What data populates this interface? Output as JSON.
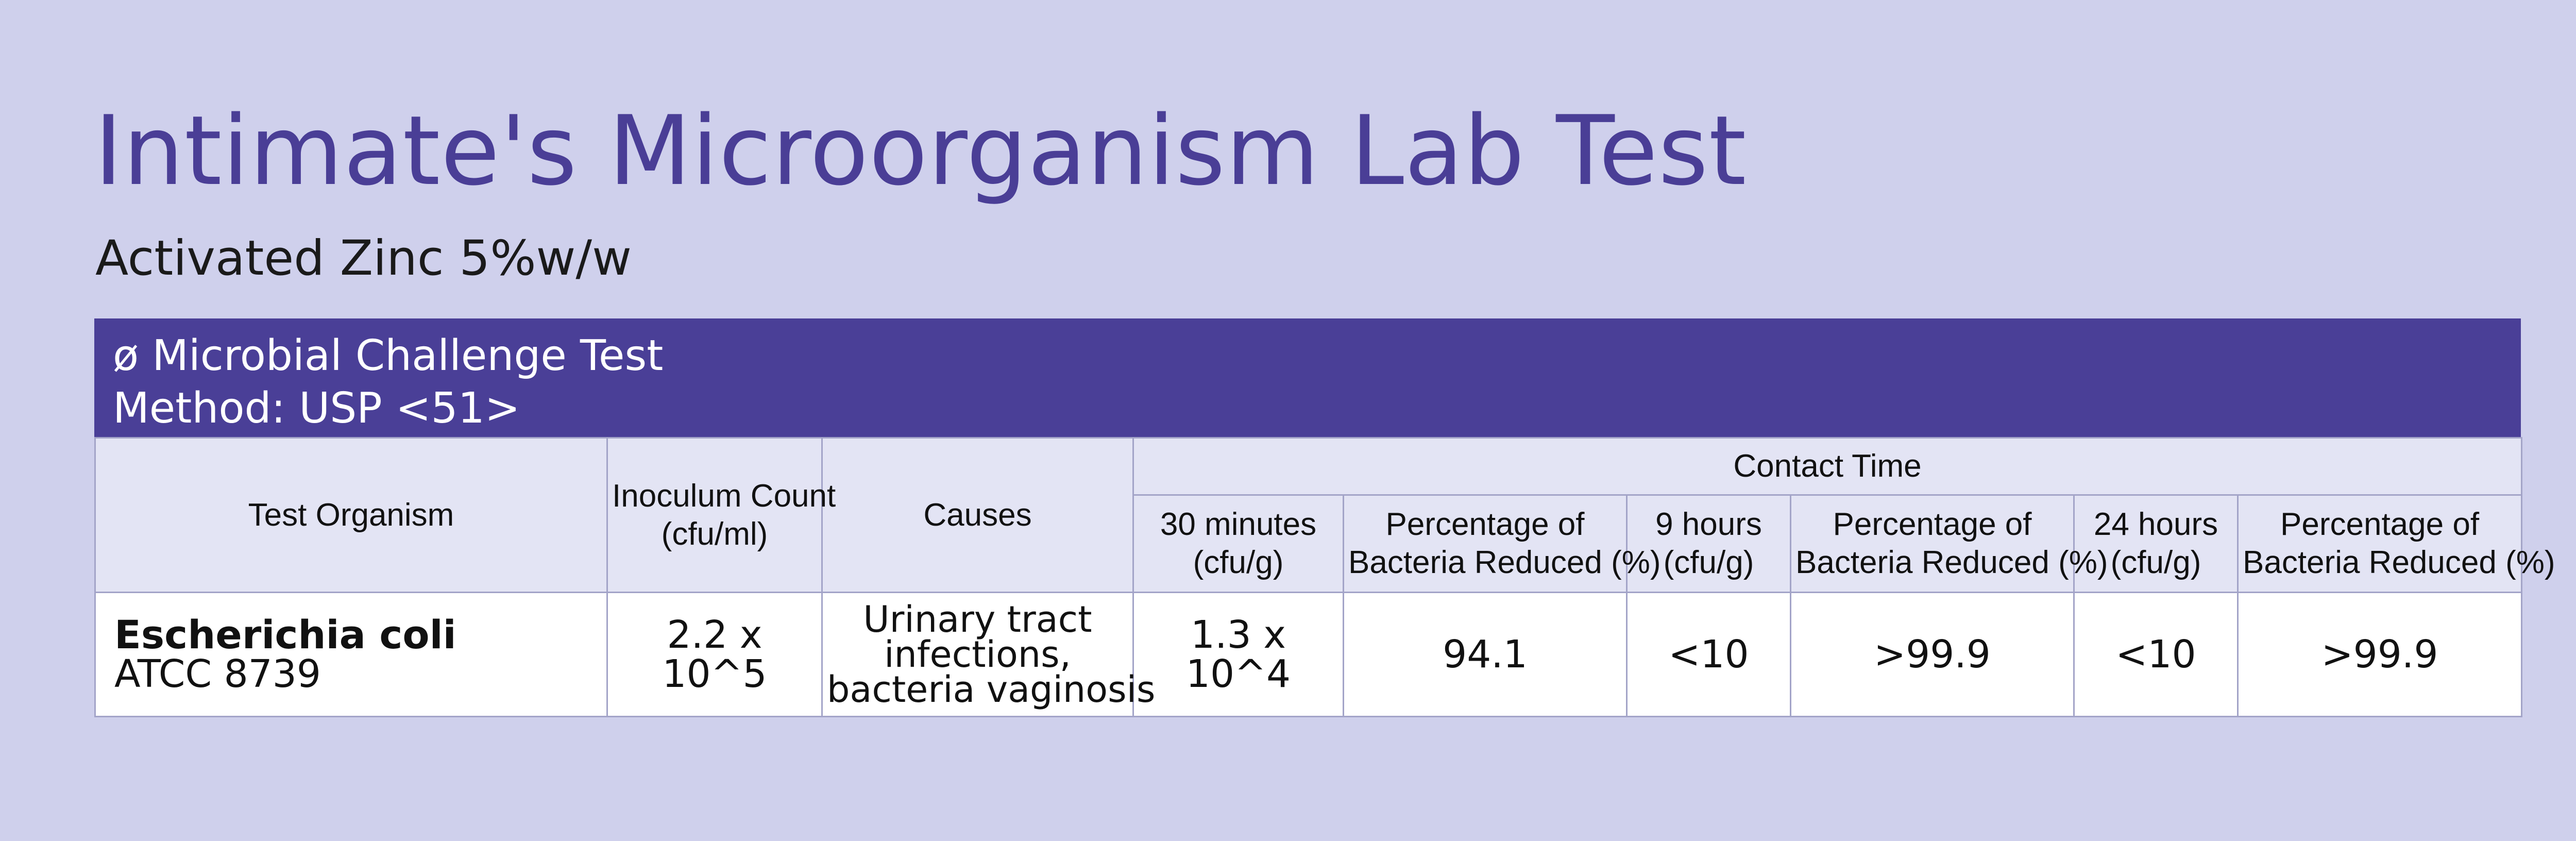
{
  "title": "Intimate's Microorganism Lab Test",
  "subtitle": "Activated Zinc 5%w/w",
  "banner": {
    "line1": "ø Microbial Challenge Test",
    "line2": "Method: USP <51>"
  },
  "table": {
    "headers": {
      "test_organism": "Test Organism",
      "inoculum_count": [
        "Inoculum Count",
        "(cfu/ml)"
      ],
      "causes": "Causes",
      "contact_time": "Contact Time",
      "sub": [
        [
          "30 minutes",
          "(cfu/g)"
        ],
        [
          "Percentage of",
          "Bacteria Reduced (%)"
        ],
        [
          "9 hours",
          "(cfu/g)"
        ],
        [
          "Percentage of",
          "Bacteria Reduced (%)"
        ],
        [
          "24 hours",
          "(cfu/g)"
        ],
        [
          "Percentage of",
          "Bacteria Reduced (%)"
        ]
      ]
    },
    "rows": [
      {
        "organism_name": "Escherichia coli",
        "organism_code": "ATCC 8739",
        "inoculum": "2.2 x 10^5",
        "causes": [
          "Urinary tract",
          "infections,",
          "bacteria vaginosis"
        ],
        "t30": "1.3 x 10^4",
        "p30": "94.1",
        "t9h": "<10",
        "p9h": ">99.9",
        "t24h": "<10",
        "p24h": ">99.9"
      }
    ]
  },
  "colors": {
    "background": "#cfd0ec",
    "accent": "#4a3f97",
    "header_bg": "#e3e4f4"
  }
}
